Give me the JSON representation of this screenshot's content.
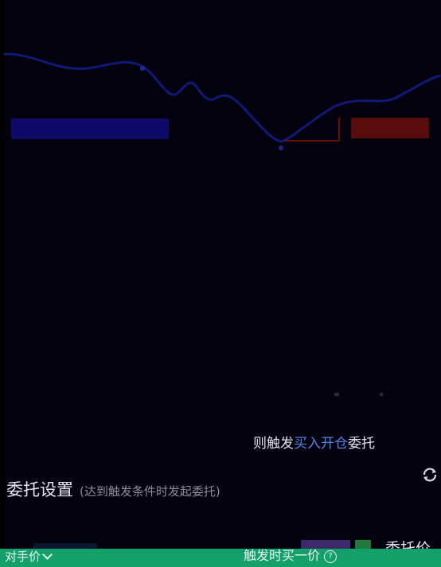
{
  "colors": {
    "background": "#04020f",
    "curve": "#0f1a78",
    "accent_blue": "#4d86e8",
    "bottom_bar": "#14a06a",
    "tag_blue": "#0d0a6a",
    "tag_red": "#5a0b0b"
  },
  "icons": {
    "refresh": "refresh-icon",
    "help": "help-icon",
    "chevron": "chevron-down-icon"
  },
  "trigger": {
    "prefix": "则触发",
    "action": "买入开仓",
    "suffix": "委托"
  },
  "section": {
    "title": "委托设置",
    "hint": "(达到触发条件时发起委托)"
  },
  "order": {
    "price_label": "委托价",
    "price_type": "对手价",
    "trigger_label": "触发时买一价"
  }
}
